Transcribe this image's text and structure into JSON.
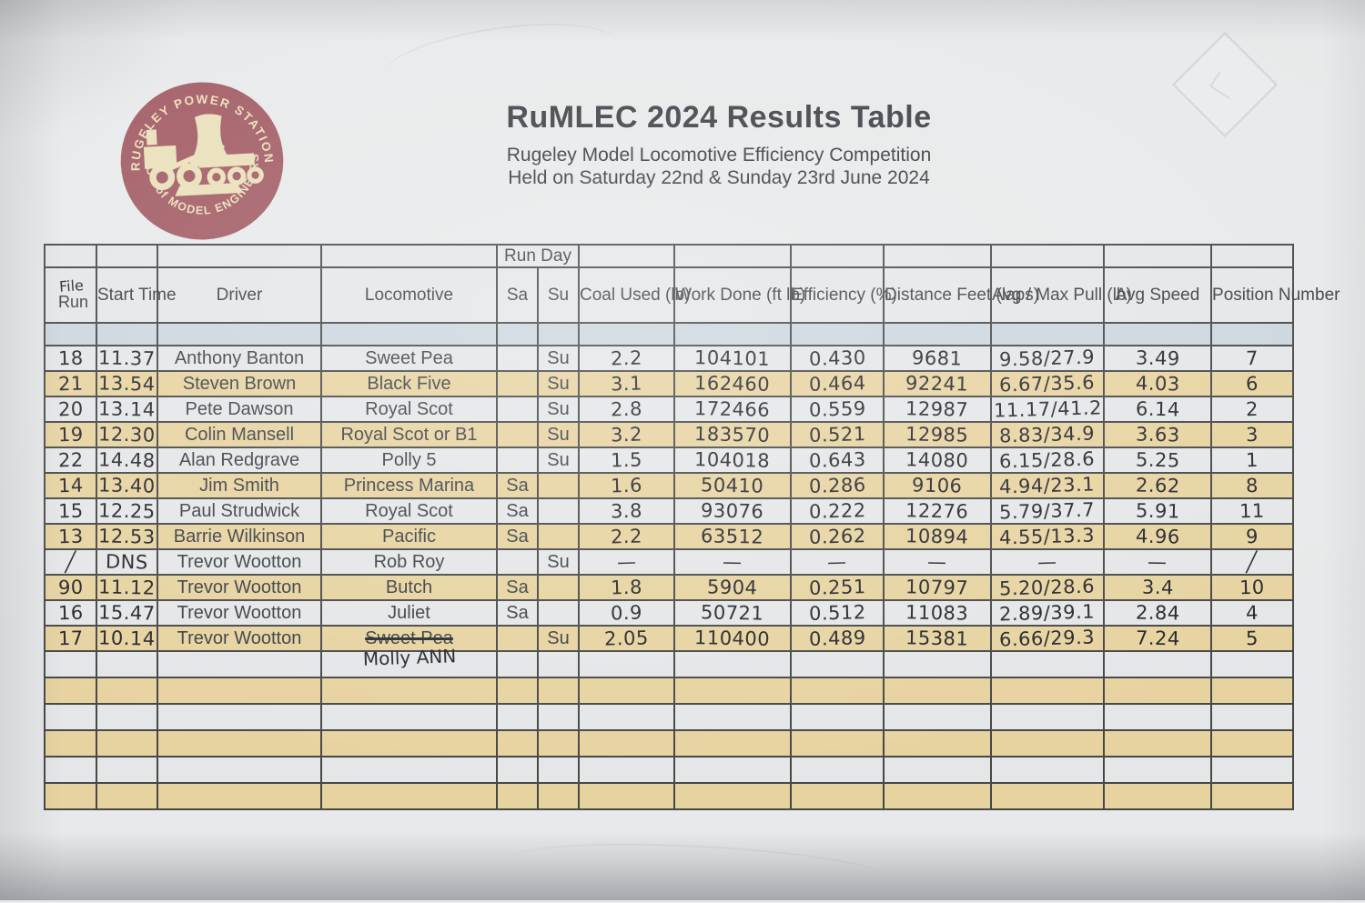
{
  "logo": {
    "ring_text_top": "RUGELEY POWER STATION",
    "ring_text_bottom": "SOC of MODEL ENGINEERS",
    "bg_color": "#a25b64",
    "fg_color": "#e9dfb9"
  },
  "title": {
    "main": "RuMLEC 2024 Results Table",
    "subtitle1": "Rugeley Model Locomotive Efficiency  Competition",
    "subtitle2": "Held on Saturday 22nd & Sunday 23rd June 2024"
  },
  "table": {
    "run_day_label": "Run Day",
    "colors": {
      "tan_row": "#e7d3a0",
      "blue_row": "#cbd6dd",
      "paper": "#e4e6e8",
      "border": "#474747"
    },
    "headers": {
      "file_hw": "File",
      "file_printed": "Run",
      "start_time": "Start\nTime",
      "driver": "Driver",
      "locomotive": "Locomotive",
      "sa": "Sa",
      "su": "Su",
      "coal": "Coal Used\n(lb)",
      "work": "Work Done\n(ft lb)",
      "efficiency": "Efficiency\n(%)",
      "distance": "Distance\nFeet (laps)",
      "pull": "Avg / Max\nPull (lb)",
      "speed": "Avg\nSpeed",
      "position": "Position\nNumber"
    },
    "rows": [
      {
        "file": "18",
        "time": "11.37",
        "driver": "Anthony Banton",
        "loco": "Sweet Pea",
        "sa": "",
        "su": "Su",
        "coal": "2.2",
        "work": "104101",
        "eff": "0.430",
        "dist": "9681",
        "pull": "9.58/27.9",
        "speed": "3.49",
        "pos": "7",
        "shade": "white"
      },
      {
        "file": "21",
        "time": "13.54",
        "driver": "Steven Brown",
        "loco": "Black Five",
        "sa": "",
        "su": "Su",
        "coal": "3.1",
        "work": "162460",
        "eff": "0.464",
        "dist": "92241",
        "pull": "6.67/35.6",
        "speed": "4.03",
        "pos": "6",
        "shade": "tan"
      },
      {
        "file": "20",
        "time": "13.14",
        "driver": "Pete Dawson",
        "loco": "Royal Scot",
        "sa": "",
        "su": "Su",
        "coal": "2.8",
        "work": "172466",
        "eff": "0.559",
        "dist": "12987",
        "pull": "11.17/41.2",
        "speed": "6.14",
        "pos": "2",
        "shade": "white"
      },
      {
        "file": "19",
        "time": "12.30",
        "driver": "Colin Mansell",
        "loco": "Royal Scot or B1",
        "sa": "",
        "su": "Su",
        "coal": "3.2",
        "work": "183570",
        "eff": "0.521",
        "dist": "12985",
        "pull": "8.83/34.9",
        "speed": "3.63",
        "pos": "3",
        "shade": "tan"
      },
      {
        "file": "22",
        "time": "14.48",
        "driver": "Alan Redgrave",
        "loco": "Polly 5",
        "sa": "",
        "su": "Su",
        "coal": "1.5",
        "work": "104018",
        "eff": "0.643",
        "dist": "14080",
        "pull": "6.15/28.6",
        "speed": "5.25",
        "pos": "1",
        "shade": "white"
      },
      {
        "file": "14",
        "time": "13.40",
        "driver": "Jim Smith",
        "loco": "Princess Marina",
        "sa": "Sa",
        "su": "",
        "coal": "1.6",
        "work": "50410",
        "eff": "0.286",
        "dist": "9106",
        "pull": "4.94/23.1",
        "speed": "2.62",
        "pos": "8",
        "shade": "tan"
      },
      {
        "file": "15",
        "time": "12.25",
        "driver": "Paul Strudwick",
        "loco": "Royal Scot",
        "sa": "Sa",
        "su": "",
        "coal": "3.8",
        "work": "93076",
        "eff": "0.222",
        "dist": "12276",
        "pull": "5.79/37.7",
        "speed": "5.91",
        "pos": "11",
        "shade": "white"
      },
      {
        "file": "13",
        "time": "12.53",
        "driver": "Barrie Wilkinson",
        "loco": "Pacific",
        "sa": "Sa",
        "su": "",
        "coal": "2.2",
        "work": "63512",
        "eff": "0.262",
        "dist": "10894",
        "pull": "4.55/13.3",
        "speed": "4.96",
        "pos": "9",
        "shade": "tan"
      },
      {
        "file": "╱",
        "time": "DNS",
        "driver": "Trevor Wootton",
        "loco": "Rob Roy",
        "sa": "",
        "su": "Su",
        "coal": "—",
        "work": "—",
        "eff": "—",
        "dist": "—",
        "pull": "—",
        "speed": "—",
        "pos": "╱",
        "shade": "white"
      },
      {
        "file": "90",
        "time": "11.12",
        "driver": "Trevor Wootton",
        "loco": "Butch",
        "sa": "Sa",
        "su": "",
        "coal": "1.8",
        "work": "5904",
        "eff": "0.251",
        "dist": "10797",
        "pull": "5.20/28.6",
        "speed": "3.4",
        "pos": "10",
        "shade": "tan"
      },
      {
        "file": "16",
        "time": "15.47",
        "driver": "Trevor Wootton",
        "loco": "Juliet",
        "sa": "Sa",
        "su": "",
        "coal": "0.9",
        "work": "50721",
        "eff": "0.512",
        "dist": "11083",
        "pull": "2.89/39.1",
        "speed": "2.84",
        "pos": "4",
        "shade": "white"
      },
      {
        "file": "17",
        "time": "10.14",
        "driver": "Trevor Wootton",
        "loco": "Sweet Pea",
        "loco_struck": true,
        "sa": "",
        "su": "Su",
        "coal": "2.05",
        "work": "110400",
        "eff": "0.489",
        "dist": "15381",
        "pull": "6.66/29.3",
        "speed": "7.24",
        "pos": "5",
        "shade": "tan"
      }
    ],
    "trailing": {
      "count": 6,
      "loco_note": "Molly ANN"
    }
  }
}
